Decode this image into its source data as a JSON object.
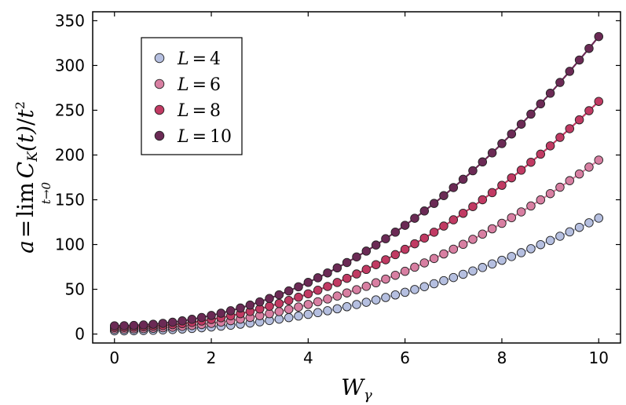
{
  "chart_data": {
    "type": "scatter",
    "x_label": {
      "main": "W",
      "sub": "γ"
    },
    "y_label": {
      "a": "a",
      "eq": "=",
      "lim": "lim",
      "lim_sub": "t→0",
      "c": "C",
      "c_sub": "K",
      "arg": "(t)",
      "slash": "/",
      "t": "t",
      "pow": "2"
    },
    "xlim": [
      -0.45,
      10.45
    ],
    "ylim": [
      -10,
      360
    ],
    "x_ticks": [
      0,
      2,
      4,
      6,
      8,
      10
    ],
    "y_ticks": [
      0,
      50,
      100,
      150,
      200,
      250,
      300,
      350
    ],
    "grid": false,
    "legend_position": "top-left",
    "x_start": 0,
    "x_step": 0.2,
    "n_points": 51,
    "series": [
      {
        "name": "L = 4",
        "label_var": "L",
        "label_op": "=",
        "label_val": "4",
        "color": "#b5bfe0",
        "a": 3.6,
        "b": 1.0,
        "p": 2.1
      },
      {
        "name": "L = 6",
        "label_var": "L",
        "label_op": "=",
        "label_val": "6",
        "color": "#d87fa2",
        "a": 5.5,
        "b": 1.5,
        "p": 2.1
      },
      {
        "name": "L = 8",
        "label_var": "L",
        "label_op": "=",
        "label_val": "8",
        "color": "#c13a63",
        "a": 7.4,
        "b": 2.1,
        "p": 2.08
      },
      {
        "name": "L = 10",
        "label_var": "L",
        "label_op": "=",
        "label_val": "10",
        "color": "#6b2a55",
        "a": 9.2,
        "b": 2.75,
        "p": 2.07
      }
    ]
  }
}
